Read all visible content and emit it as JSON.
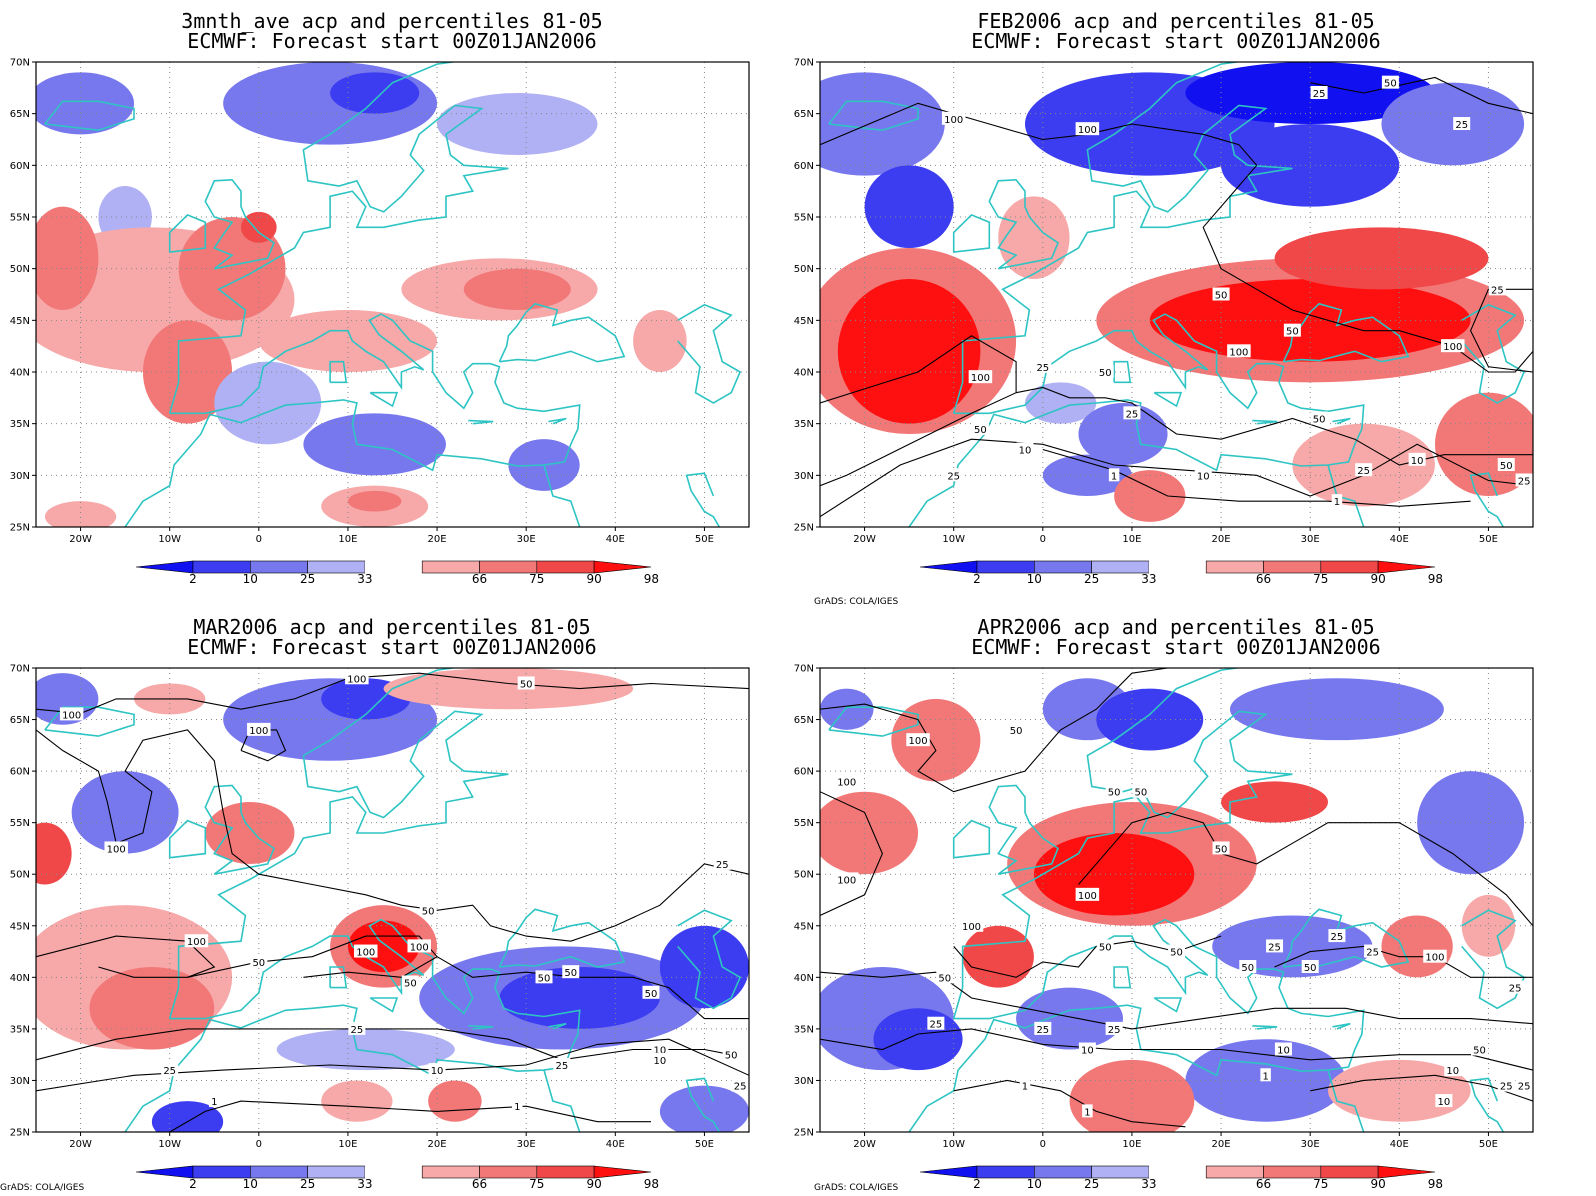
{
  "credit": "GrADS: COLA/IGES",
  "colors": {
    "coast": "#2ec4c4",
    "c2": "#1010f0",
    "c10": "#3c3cf0",
    "c25": "#7878ee",
    "c33": "#b0b0f4",
    "c66": "#f7a8a8",
    "c75": "#f27878",
    "c90": "#f04848",
    "c98": "#ff1010",
    "contour": "#000000"
  },
  "axes": {
    "x_ticks": [
      "20W",
      "10W",
      "0",
      "10E",
      "20E",
      "30E",
      "40E",
      "50E"
    ],
    "y_ticks": [
      "70N",
      "65N",
      "60N",
      "55N",
      "50N",
      "45N",
      "40N",
      "35N",
      "30N",
      "25N"
    ],
    "lon_range": [
      -25,
      55
    ],
    "lat_range": [
      25,
      70
    ]
  },
  "colorbar": {
    "labels": [
      "2",
      "10",
      "25",
      "33",
      "66",
      "75",
      "90",
      "98"
    ],
    "levels": [
      2,
      10,
      25,
      33,
      66,
      75,
      90,
      98
    ]
  },
  "panels": [
    {
      "title1": "3mnth_ave acp and percentiles 81-05",
      "title2": "ECMWF: Forecast start 00Z01JAN2006",
      "show_credit": false,
      "blobs": [
        {
          "lon": -20,
          "lat": 66,
          "rx": 6,
          "ry": 3,
          "cat": "c25"
        },
        {
          "lon": 8,
          "lat": 66,
          "rx": 12,
          "ry": 4,
          "cat": "c25"
        },
        {
          "lon": 13,
          "lat": 67,
          "rx": 5,
          "ry": 2,
          "cat": "c10"
        },
        {
          "lon": 29,
          "lat": 64,
          "rx": 9,
          "ry": 3,
          "cat": "c33"
        },
        {
          "lon": -15,
          "lat": 55,
          "rx": 3,
          "ry": 3,
          "cat": "c33"
        },
        {
          "lon": -12,
          "lat": 47,
          "rx": 16,
          "ry": 7,
          "cat": "c66"
        },
        {
          "lon": -22,
          "lat": 51,
          "rx": 4,
          "ry": 5,
          "cat": "c75"
        },
        {
          "lon": -3,
          "lat": 50,
          "rx": 6,
          "ry": 5,
          "cat": "c75"
        },
        {
          "lon": 0,
          "lat": 54,
          "rx": 2,
          "ry": 1.5,
          "cat": "c90"
        },
        {
          "lon": -8,
          "lat": 40,
          "rx": 5,
          "ry": 5,
          "cat": "c75"
        },
        {
          "lon": 10,
          "lat": 43,
          "rx": 10,
          "ry": 3,
          "cat": "c66"
        },
        {
          "lon": 27,
          "lat": 48,
          "rx": 11,
          "ry": 3,
          "cat": "c66"
        },
        {
          "lon": 29,
          "lat": 48,
          "rx": 6,
          "ry": 2,
          "cat": "c75"
        },
        {
          "lon": 45,
          "lat": 43,
          "rx": 3,
          "ry": 3,
          "cat": "c66"
        },
        {
          "lon": 1,
          "lat": 37,
          "rx": 6,
          "ry": 4,
          "cat": "c33"
        },
        {
          "lon": 13,
          "lat": 33,
          "rx": 8,
          "ry": 3,
          "cat": "c25"
        },
        {
          "lon": 32,
          "lat": 31,
          "rx": 4,
          "ry": 2.5,
          "cat": "c25"
        },
        {
          "lon": 13,
          "lat": 27,
          "rx": 6,
          "ry": 2,
          "cat": "c66"
        },
        {
          "lon": 13,
          "lat": 27.5,
          "rx": 3,
          "ry": 1,
          "cat": "c75"
        },
        {
          "lon": -20,
          "lat": 26,
          "rx": 4,
          "ry": 1.5,
          "cat": "c66"
        }
      ],
      "contour_labels": []
    },
    {
      "title1": "FEB2006 acp and percentiles 81-05",
      "title2": "ECMWF: Forecast start 00Z01JAN2006",
      "show_credit": true,
      "blobs": [
        {
          "lon": -20,
          "lat": 64,
          "rx": 9,
          "ry": 5,
          "cat": "c25"
        },
        {
          "lon": -15,
          "lat": 56,
          "rx": 5,
          "ry": 4,
          "cat": "c10"
        },
        {
          "lon": 12,
          "lat": 64,
          "rx": 14,
          "ry": 5,
          "cat": "c10"
        },
        {
          "lon": 30,
          "lat": 67,
          "rx": 14,
          "ry": 3,
          "cat": "c2"
        },
        {
          "lon": 30,
          "lat": 60,
          "rx": 10,
          "ry": 4,
          "cat": "c10"
        },
        {
          "lon": 46,
          "lat": 64,
          "rx": 8,
          "ry": 4,
          "cat": "c25"
        },
        {
          "lon": -15,
          "lat": 43,
          "rx": 12,
          "ry": 9,
          "cat": "c75"
        },
        {
          "lon": -15,
          "lat": 42,
          "rx": 8,
          "ry": 7,
          "cat": "c98"
        },
        {
          "lon": -1,
          "lat": 53,
          "rx": 4,
          "ry": 4,
          "cat": "c66"
        },
        {
          "lon": 30,
          "lat": 45,
          "rx": 24,
          "ry": 6,
          "cat": "c75"
        },
        {
          "lon": 30,
          "lat": 45,
          "rx": 18,
          "ry": 4,
          "cat": "c98"
        },
        {
          "lon": 38,
          "lat": 51,
          "rx": 12,
          "ry": 3,
          "cat": "c90"
        },
        {
          "lon": 2,
          "lat": 37,
          "rx": 4,
          "ry": 2,
          "cat": "c33"
        },
        {
          "lon": 9,
          "lat": 34,
          "rx": 5,
          "ry": 3,
          "cat": "c25"
        },
        {
          "lon": 5,
          "lat": 30,
          "rx": 5,
          "ry": 2,
          "cat": "c25"
        },
        {
          "lon": 12,
          "lat": 28,
          "rx": 4,
          "ry": 2.5,
          "cat": "c75"
        },
        {
          "lon": 36,
          "lat": 31,
          "rx": 8,
          "ry": 4,
          "cat": "c66"
        },
        {
          "lon": 50,
          "lat": 33,
          "rx": 6,
          "ry": 5,
          "cat": "c75"
        }
      ],
      "contour_labels": [
        {
          "lon": -10,
          "lat": 64.5,
          "text": "100"
        },
        {
          "lon": 5,
          "lat": 63.5,
          "text": "100"
        },
        {
          "lon": 31,
          "lat": 67,
          "text": "25"
        },
        {
          "lon": 39,
          "lat": 68,
          "text": "50"
        },
        {
          "lon": 47,
          "lat": 64,
          "text": "25"
        },
        {
          "lon": 51,
          "lat": 48,
          "text": "25"
        },
        {
          "lon": 20,
          "lat": 47.5,
          "text": "50"
        },
        {
          "lon": 28,
          "lat": 44,
          "text": "50"
        },
        {
          "lon": 22,
          "lat": 42,
          "text": "100"
        },
        {
          "lon": 46,
          "lat": 42.5,
          "text": "100"
        },
        {
          "lon": -7,
          "lat": 39.5,
          "text": "100"
        },
        {
          "lon": 0,
          "lat": 40.5,
          "text": "25"
        },
        {
          "lon": 7,
          "lat": 40,
          "text": "50"
        },
        {
          "lon": 10,
          "lat": 36,
          "text": "25"
        },
        {
          "lon": -7,
          "lat": 34.5,
          "text": "50"
        },
        {
          "lon": -2,
          "lat": 32.5,
          "text": "10"
        },
        {
          "lon": -10,
          "lat": 30,
          "text": "25"
        },
        {
          "lon": 8,
          "lat": 30,
          "text": "1"
        },
        {
          "lon": 18,
          "lat": 30,
          "text": "10"
        },
        {
          "lon": 31,
          "lat": 35.5,
          "text": "50"
        },
        {
          "lon": 36,
          "lat": 30.5,
          "text": "25"
        },
        {
          "lon": 42,
          "lat": 31.5,
          "text": "10"
        },
        {
          "lon": 52,
          "lat": 31,
          "text": "50"
        },
        {
          "lon": 54,
          "lat": 29.5,
          "text": "25"
        },
        {
          "lon": 33,
          "lat": 27.5,
          "text": "1"
        }
      ]
    },
    {
      "title1": "MAR2006 acp and percentiles 81-05",
      "title2": "ECMWF: Forecast start 00Z01JAN2006",
      "show_credit": true,
      "blobs": [
        {
          "lon": -22,
          "lat": 67,
          "rx": 4,
          "ry": 2.5,
          "cat": "c25"
        },
        {
          "lon": 8,
          "lat": 65,
          "rx": 12,
          "ry": 4,
          "cat": "c25"
        },
        {
          "lon": 12,
          "lat": 67,
          "rx": 5,
          "ry": 2,
          "cat": "c10"
        },
        {
          "lon": -10,
          "lat": 67,
          "rx": 4,
          "ry": 1.5,
          "cat": "c66"
        },
        {
          "lon": 28,
          "lat": 68,
          "rx": 14,
          "ry": 2,
          "cat": "c66"
        },
        {
          "lon": -15,
          "lat": 56,
          "rx": 6,
          "ry": 4,
          "cat": "c25"
        },
        {
          "lon": -1,
          "lat": 54,
          "rx": 5,
          "ry": 3,
          "cat": "c75"
        },
        {
          "lon": -24,
          "lat": 52,
          "rx": 3,
          "ry": 3,
          "cat": "c90"
        },
        {
          "lon": -15,
          "lat": 40,
          "rx": 12,
          "ry": 7,
          "cat": "c66"
        },
        {
          "lon": -12,
          "lat": 37,
          "rx": 7,
          "ry": 4,
          "cat": "c75"
        },
        {
          "lon": 14,
          "lat": 43,
          "rx": 6,
          "ry": 4,
          "cat": "c75"
        },
        {
          "lon": 14,
          "lat": 43,
          "rx": 4,
          "ry": 2.5,
          "cat": "c98"
        },
        {
          "lon": 34,
          "lat": 38,
          "rx": 16,
          "ry": 5,
          "cat": "c25"
        },
        {
          "lon": 36,
          "lat": 38,
          "rx": 9,
          "ry": 3,
          "cat": "c10"
        },
        {
          "lon": 50,
          "lat": 41,
          "rx": 5,
          "ry": 4,
          "cat": "c10"
        },
        {
          "lon": 12,
          "lat": 33,
          "rx": 10,
          "ry": 2,
          "cat": "c33"
        },
        {
          "lon": -8,
          "lat": 26,
          "rx": 4,
          "ry": 2,
          "cat": "c10"
        },
        {
          "lon": 50,
          "lat": 27,
          "rx": 5,
          "ry": 2.5,
          "cat": "c25"
        },
        {
          "lon": 22,
          "lat": 28,
          "rx": 3,
          "ry": 2,
          "cat": "c75"
        },
        {
          "lon": 11,
          "lat": 28,
          "rx": 4,
          "ry": 2,
          "cat": "c66"
        }
      ],
      "contour_labels": [
        {
          "lon": 11,
          "lat": 69,
          "text": "100"
        },
        {
          "lon": 30,
          "lat": 68.5,
          "text": "50"
        },
        {
          "lon": -21,
          "lat": 65.5,
          "text": "100"
        },
        {
          "lon": 0,
          "lat": 64,
          "text": "100"
        },
        {
          "lon": -16,
          "lat": 52.5,
          "text": "100"
        },
        {
          "lon": 52,
          "lat": 51,
          "text": "25"
        },
        {
          "lon": 19,
          "lat": 46.5,
          "text": "50"
        },
        {
          "lon": -7,
          "lat": 43.5,
          "text": "100"
        },
        {
          "lon": 12,
          "lat": 42.5,
          "text": "100"
        },
        {
          "lon": 18,
          "lat": 43,
          "text": "100"
        },
        {
          "lon": 0,
          "lat": 41.5,
          "text": "50"
        },
        {
          "lon": 17,
          "lat": 39.5,
          "text": "50"
        },
        {
          "lon": 32,
          "lat": 40,
          "text": "50"
        },
        {
          "lon": 35,
          "lat": 40.5,
          "text": "50"
        },
        {
          "lon": 44,
          "lat": 38.5,
          "text": "50"
        },
        {
          "lon": 11,
          "lat": 35,
          "text": "25"
        },
        {
          "lon": 53,
          "lat": 32.5,
          "text": "50"
        },
        {
          "lon": 34,
          "lat": 31.5,
          "text": "25"
        },
        {
          "lon": 45,
          "lat": 33,
          "text": "10"
        },
        {
          "lon": 45,
          "lat": 32,
          "text": "10"
        },
        {
          "lon": -10,
          "lat": 31,
          "text": "25"
        },
        {
          "lon": 20,
          "lat": 31,
          "text": "10"
        },
        {
          "lon": 54,
          "lat": 29.5,
          "text": "25"
        },
        {
          "lon": -5,
          "lat": 28,
          "text": "1"
        },
        {
          "lon": 29,
          "lat": 27.5,
          "text": "1"
        }
      ]
    },
    {
      "title1": "APR2006 acp and percentiles 81-05",
      "title2": "ECMWF: Forecast start 00Z01JAN2006",
      "show_credit": true,
      "blobs": [
        {
          "lon": -22,
          "lat": 66,
          "rx": 3,
          "ry": 2,
          "cat": "c25"
        },
        {
          "lon": -12,
          "lat": 63,
          "rx": 5,
          "ry": 4,
          "cat": "c75"
        },
        {
          "lon": 5,
          "lat": 66,
          "rx": 5,
          "ry": 3,
          "cat": "c25"
        },
        {
          "lon": 12,
          "lat": 65,
          "rx": 6,
          "ry": 3,
          "cat": "c10"
        },
        {
          "lon": 33,
          "lat": 66,
          "rx": 12,
          "ry": 3,
          "cat": "c25"
        },
        {
          "lon": -20,
          "lat": 54,
          "rx": 6,
          "ry": 4,
          "cat": "c75"
        },
        {
          "lon": 10,
          "lat": 51,
          "rx": 14,
          "ry": 6,
          "cat": "c75"
        },
        {
          "lon": 8,
          "lat": 50,
          "rx": 9,
          "ry": 4,
          "cat": "c98"
        },
        {
          "lon": 26,
          "lat": 57,
          "rx": 6,
          "ry": 2,
          "cat": "c90"
        },
        {
          "lon": 48,
          "lat": 55,
          "rx": 6,
          "ry": 5,
          "cat": "c25"
        },
        {
          "lon": -5,
          "lat": 42,
          "rx": 4,
          "ry": 3,
          "cat": "c90"
        },
        {
          "lon": -18,
          "lat": 36,
          "rx": 8,
          "ry": 5,
          "cat": "c25"
        },
        {
          "lon": -14,
          "lat": 34,
          "rx": 5,
          "ry": 3,
          "cat": "c10"
        },
        {
          "lon": 3,
          "lat": 36,
          "rx": 6,
          "ry": 3,
          "cat": "c25"
        },
        {
          "lon": 28,
          "lat": 43,
          "rx": 9,
          "ry": 3,
          "cat": "c25"
        },
        {
          "lon": 42,
          "lat": 43,
          "rx": 4,
          "ry": 3,
          "cat": "c75"
        },
        {
          "lon": 25,
          "lat": 30,
          "rx": 9,
          "ry": 4,
          "cat": "c25"
        },
        {
          "lon": 10,
          "lat": 28,
          "rx": 7,
          "ry": 4,
          "cat": "c75"
        },
        {
          "lon": 40,
          "lat": 29,
          "rx": 8,
          "ry": 3,
          "cat": "c66"
        },
        {
          "lon": 50,
          "lat": 45,
          "rx": 3,
          "ry": 3,
          "cat": "c66"
        }
      ],
      "contour_labels": [
        {
          "lon": -14,
          "lat": 63,
          "text": "100"
        },
        {
          "lon": -3,
          "lat": 64,
          "text": "50"
        },
        {
          "lon": -22,
          "lat": 59,
          "text": "100"
        },
        {
          "lon": 8,
          "lat": 58,
          "text": "50"
        },
        {
          "lon": 11,
          "lat": 58,
          "text": "50"
        },
        {
          "lon": 20,
          "lat": 52.5,
          "text": "50"
        },
        {
          "lon": -22,
          "lat": 49.5,
          "text": "100"
        },
        {
          "lon": 5,
          "lat": 48,
          "text": "100"
        },
        {
          "lon": -8,
          "lat": 45,
          "text": "100"
        },
        {
          "lon": 7,
          "lat": 43,
          "text": "50"
        },
        {
          "lon": 15,
          "lat": 42.5,
          "text": "50"
        },
        {
          "lon": 26,
          "lat": 43,
          "text": "25"
        },
        {
          "lon": 33,
          "lat": 44,
          "text": "25"
        },
        {
          "lon": 37,
          "lat": 42.5,
          "text": "25"
        },
        {
          "lon": 44,
          "lat": 42,
          "text": "100"
        },
        {
          "lon": 30,
          "lat": 41,
          "text": "50"
        },
        {
          "lon": 23,
          "lat": 41,
          "text": "50"
        },
        {
          "lon": -11,
          "lat": 40,
          "text": "50"
        },
        {
          "lon": 53,
          "lat": 39,
          "text": "25"
        },
        {
          "lon": -12,
          "lat": 35.5,
          "text": "25"
        },
        {
          "lon": 0,
          "lat": 35,
          "text": "25"
        },
        {
          "lon": 8,
          "lat": 35,
          "text": "25"
        },
        {
          "lon": 5,
          "lat": 33,
          "text": "10"
        },
        {
          "lon": 27,
          "lat": 33,
          "text": "10"
        },
        {
          "lon": 49,
          "lat": 33,
          "text": "50"
        },
        {
          "lon": 46,
          "lat": 31,
          "text": "10"
        },
        {
          "lon": 52,
          "lat": 29.5,
          "text": "25"
        },
        {
          "lon": 54,
          "lat": 29.5,
          "text": "25"
        },
        {
          "lon": -2,
          "lat": 29.5,
          "text": "1"
        },
        {
          "lon": 25,
          "lat": 30.5,
          "text": "1"
        },
        {
          "lon": 5,
          "lat": 27,
          "text": "1"
        },
        {
          "lon": 45,
          "lat": 28,
          "text": "10"
        }
      ]
    }
  ]
}
